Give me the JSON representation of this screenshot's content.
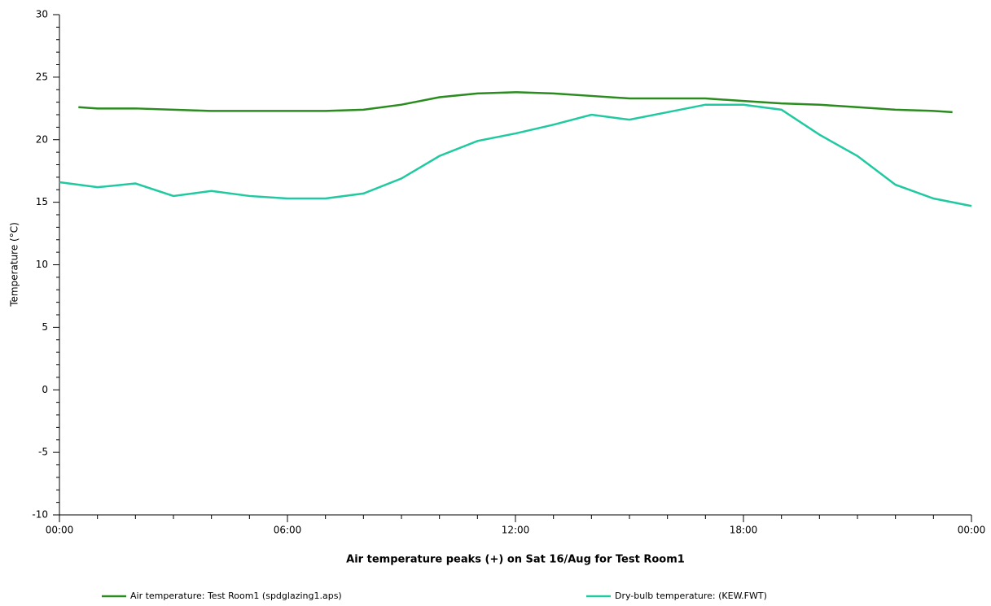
{
  "chart_data": {
    "type": "line",
    "title": "Air temperature peaks (+) on Sat 16/Aug for Test Room1",
    "y_label": "Temperature (°C)",
    "xlim": [
      0,
      24
    ],
    "xticks": [
      {
        "value": 0,
        "label": "00:00"
      },
      {
        "value": 6,
        "label": "06:00"
      },
      {
        "value": 12,
        "label": "12:00"
      },
      {
        "value": 18,
        "label": "18:00"
      },
      {
        "value": 24,
        "label": "00:00"
      }
    ],
    "xminor_ticks": [
      1,
      2,
      3,
      4,
      5,
      7,
      8,
      9,
      10,
      11,
      13,
      14,
      15,
      16,
      17,
      19,
      20,
      21,
      22,
      23
    ],
    "ylim": [
      -10,
      30
    ],
    "yticks": [
      -10,
      -5,
      0,
      5,
      10,
      15,
      20,
      25,
      30
    ],
    "yminor_ticks": [
      -9,
      -8,
      -7,
      -6,
      -4,
      -3,
      -2,
      -1,
      1,
      2,
      3,
      4,
      6,
      7,
      8,
      9,
      11,
      12,
      13,
      14,
      16,
      17,
      18,
      19,
      21,
      22,
      23,
      24,
      26,
      27,
      28,
      29
    ],
    "series": [
      {
        "name": "Air temperature: Test Room1 (spdglazing1.aps)",
        "color": "#2a8c1e",
        "x": [
          0.5,
          1,
          2,
          3,
          4,
          5,
          6,
          7,
          8,
          9,
          10,
          11,
          12,
          13,
          14,
          15,
          16,
          17,
          18,
          19,
          20,
          21,
          22,
          23,
          23.5
        ],
        "values": [
          22.6,
          22.5,
          22.5,
          22.4,
          22.3,
          22.3,
          22.3,
          22.3,
          22.4,
          22.8,
          23.4,
          23.7,
          23.8,
          23.7,
          23.5,
          23.3,
          23.3,
          23.3,
          23.1,
          22.9,
          22.8,
          22.6,
          22.4,
          22.3,
          22.2
        ]
      },
      {
        "name": "Dry-bulb temperature: (KEW.FWT)",
        "color": "#20c9a0",
        "x": [
          0,
          1,
          2,
          3,
          4,
          5,
          6,
          7,
          8,
          9,
          10,
          11,
          12,
          13,
          14,
          15,
          16,
          17,
          18,
          19,
          20,
          21,
          22,
          23,
          24
        ],
        "values": [
          16.6,
          16.2,
          16.5,
          15.5,
          15.9,
          15.5,
          15.3,
          15.3,
          15.7,
          16.9,
          18.7,
          19.9,
          20.5,
          21.2,
          22.0,
          21.6,
          22.2,
          22.8,
          22.8,
          22.4,
          20.4,
          18.7,
          16.4,
          15.3,
          14.7
        ]
      }
    ]
  }
}
